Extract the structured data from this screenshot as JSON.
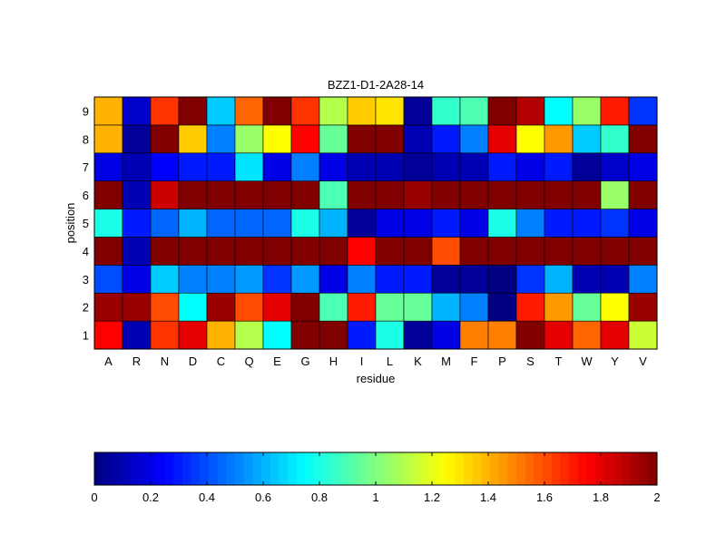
{
  "chart_data": {
    "type": "heatmap",
    "title": "BZZ1-D1-2A28-14",
    "xlabel": "residue",
    "ylabel": "position",
    "x_categories": [
      "A",
      "R",
      "N",
      "D",
      "C",
      "Q",
      "E",
      "G",
      "H",
      "I",
      "L",
      "K",
      "M",
      "F",
      "P",
      "S",
      "T",
      "W",
      "Y",
      "V"
    ],
    "y_categories": [
      "1",
      "2",
      "3",
      "4",
      "5",
      "6",
      "7",
      "8",
      "9"
    ],
    "color_range": [
      0,
      2
    ],
    "colorbar_ticks": [
      "0",
      "0.2",
      "0.4",
      "0.6",
      "0.8",
      "1",
      "1.2",
      "1.4",
      "1.6",
      "1.8",
      "2"
    ],
    "values": [
      [
        1.75,
        0.1,
        1.65,
        1.8,
        1.4,
        1.1,
        0.75,
        2.0,
        2.0,
        0.3,
        0.8,
        0.05,
        0.2,
        1.5,
        1.5,
        2.0,
        1.8,
        1.55,
        1.8,
        1.15
      ],
      [
        1.95,
        1.95,
        1.6,
        0.75,
        1.95,
        1.6,
        1.8,
        2.0,
        0.9,
        1.7,
        0.95,
        0.95,
        0.6,
        0.5,
        0.0,
        1.7,
        1.45,
        0.95,
        1.25,
        1.95
      ],
      [
        0.4,
        0.2,
        0.65,
        0.5,
        0.5,
        0.55,
        0.35,
        0.55,
        0.2,
        0.5,
        0.3,
        0.3,
        0.05,
        0.05,
        0.0,
        0.35,
        0.6,
        0.1,
        0.1,
        0.5
      ],
      [
        2.0,
        0.1,
        2.0,
        2.0,
        2.0,
        2.0,
        2.0,
        2.0,
        2.0,
        1.75,
        2.0,
        2.0,
        1.6,
        2.0,
        2.0,
        2.0,
        2.0,
        2.0,
        2.0,
        2.0
      ],
      [
        0.8,
        0.3,
        0.45,
        0.6,
        0.45,
        0.45,
        0.45,
        0.8,
        0.6,
        0.05,
        0.2,
        0.2,
        0.3,
        0.2,
        0.8,
        0.5,
        0.3,
        0.3,
        0.35,
        0.2
      ],
      [
        2.0,
        0.1,
        1.85,
        2.0,
        2.0,
        2.0,
        2.0,
        2.0,
        0.9,
        2.0,
        2.0,
        1.95,
        2.0,
        2.0,
        2.0,
        2.0,
        2.0,
        2.0,
        1.05,
        2.0
      ],
      [
        0.2,
        0.1,
        0.25,
        0.3,
        0.3,
        0.7,
        0.2,
        0.5,
        0.2,
        0.1,
        0.1,
        0.05,
        0.1,
        0.1,
        0.3,
        0.2,
        0.3,
        0.05,
        0.15,
        0.2
      ],
      [
        1.4,
        0.05,
        2.0,
        1.35,
        0.5,
        1.05,
        1.25,
        1.75,
        0.95,
        2.0,
        2.0,
        0.1,
        0.3,
        0.5,
        1.8,
        1.25,
        1.45,
        0.65,
        0.85,
        2.0
      ],
      [
        1.4,
        0.15,
        1.65,
        2.0,
        0.65,
        1.55,
        2.0,
        1.65,
        1.1,
        1.35,
        1.3,
        0.05,
        0.85,
        0.9,
        2.0,
        1.9,
        0.75,
        1.05,
        1.7,
        0.35
      ]
    ]
  }
}
